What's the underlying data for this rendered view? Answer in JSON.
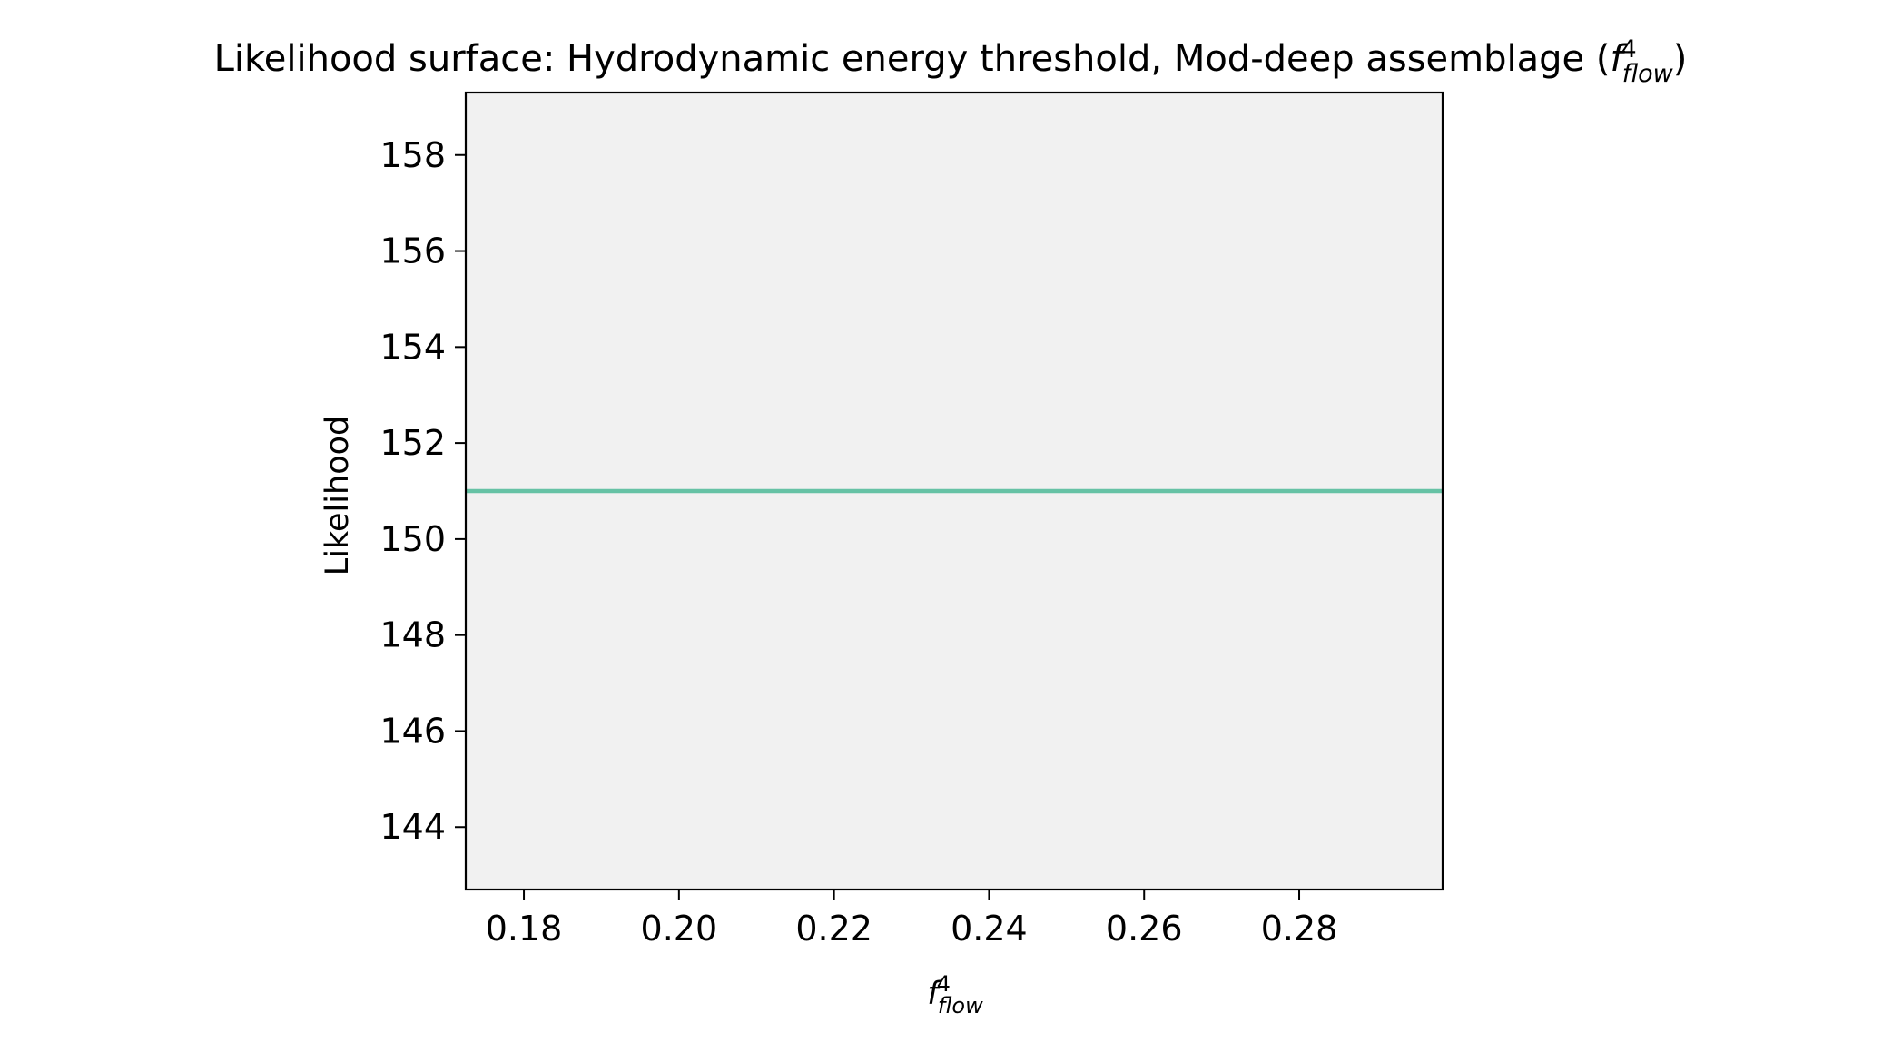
{
  "chart_data": {
    "type": "line",
    "title_prefix": "Likelihood surface: Hydrodynamic energy threshold, Mod-deep assemblage (",
    "title_suffix": ")",
    "title_symbol": {
      "base": "f",
      "sub": "flow",
      "sup": "4"
    },
    "xlabel_symbol": {
      "base": "f",
      "sub": "flow",
      "sup": "4"
    },
    "ylabel": "Likelihood",
    "xlim": [
      0.1725,
      0.2985
    ],
    "ylim": [
      142.7,
      159.3
    ],
    "x_ticks": [
      0.18,
      0.2,
      0.22,
      0.24,
      0.26,
      0.28
    ],
    "x_tick_labels": [
      "0.18",
      "0.20",
      "0.22",
      "0.24",
      "0.26",
      "0.28"
    ],
    "y_ticks": [
      144,
      146,
      148,
      150,
      152,
      154,
      156,
      158
    ],
    "y_tick_labels": [
      "144",
      "146",
      "148",
      "150",
      "152",
      "154",
      "156",
      "158"
    ],
    "grid": false,
    "series": [
      {
        "x": [
          0.1725,
          0.2985
        ],
        "y": [
          151.0,
          151.0
        ],
        "color": "#66c2a5"
      }
    ],
    "plot_background": "#f1f1f1"
  }
}
